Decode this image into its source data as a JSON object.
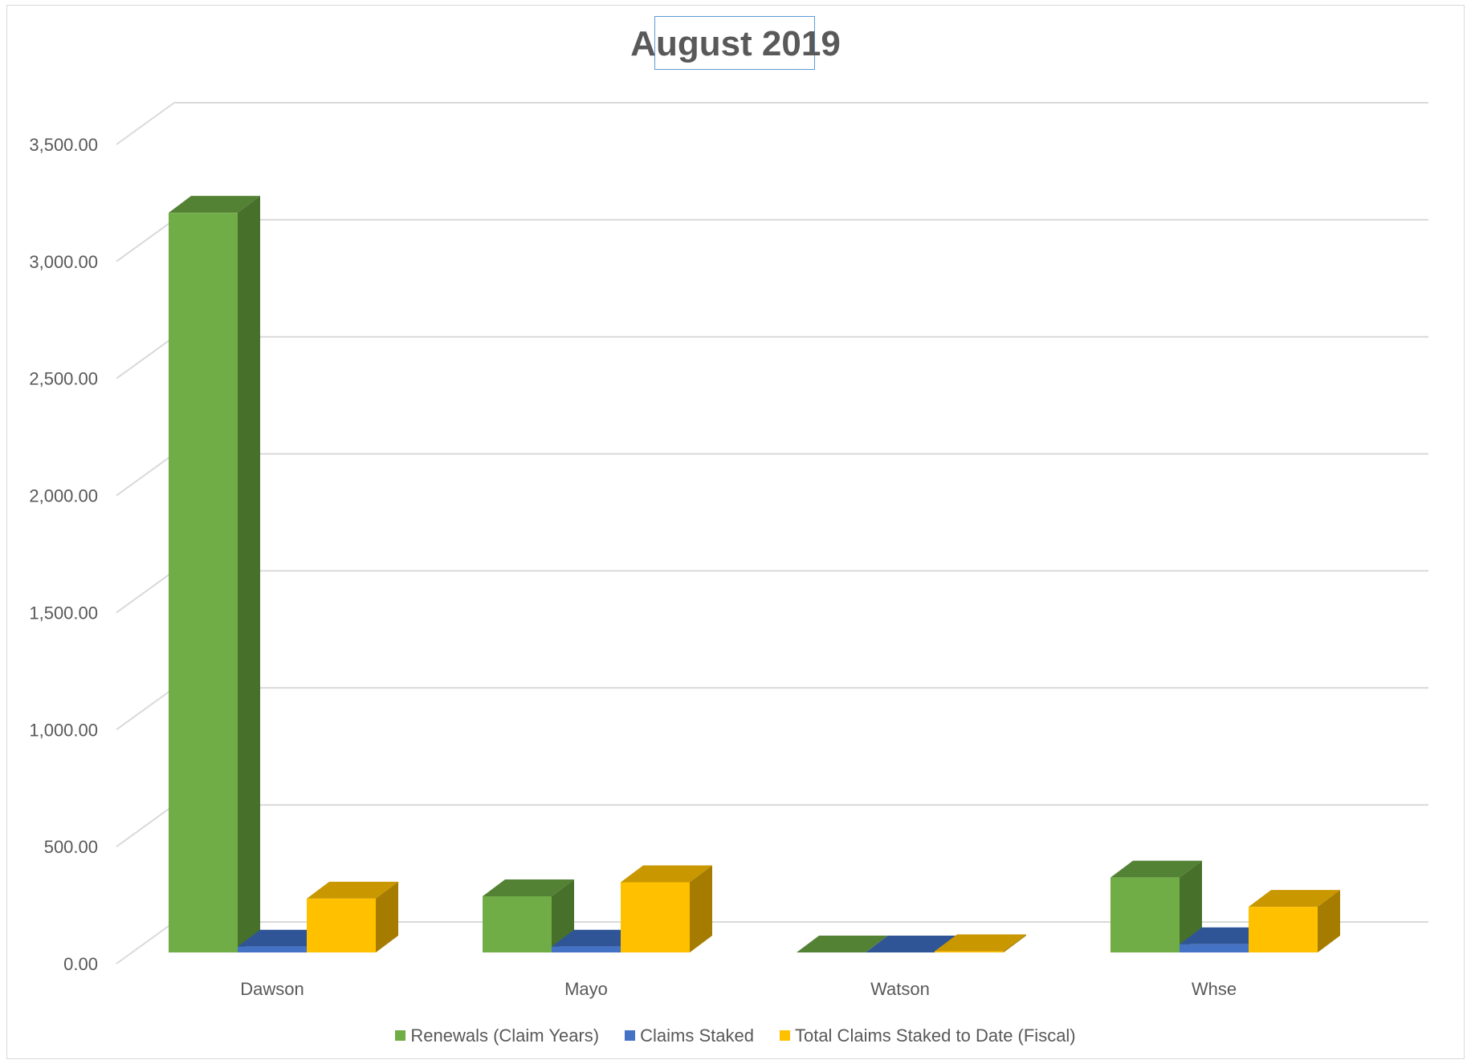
{
  "chart_data": {
    "type": "bar",
    "title": "August 2019",
    "categories": [
      "Dawson",
      "Mayo",
      "Watson",
      "Whse"
    ],
    "series": [
      {
        "name": "Renewals (Claim Years)",
        "values": [
          3160,
          240,
          0,
          320
        ],
        "color": "#70ad47",
        "side_color": "#47712b",
        "top_color": "#548235"
      },
      {
        "name": "Claims Staked",
        "values": [
          25,
          25,
          0,
          35
        ],
        "color": "#4472c4",
        "side_color": "#2f528f",
        "top_color": "#2f5597"
      },
      {
        "name": "Total Claims Staked to Date (Fiscal)",
        "values": [
          230,
          300,
          5,
          195
        ],
        "color": "#ffc000",
        "side_color": "#a67c00",
        "top_color": "#c99700"
      }
    ],
    "y_ticks": [
      "0.00",
      "500.00",
      "1,000.00",
      "1,500.00",
      "2,000.00",
      "2,500.00",
      "3,000.00",
      "3,500.00"
    ],
    "ylim": [
      0,
      3500
    ],
    "grid": true,
    "legend_position": "bottom"
  }
}
